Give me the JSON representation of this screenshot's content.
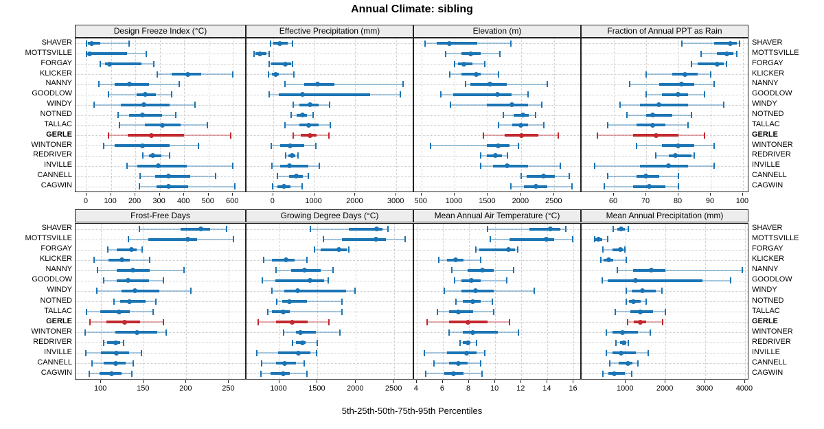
{
  "title": "Annual Climate: sibling",
  "footer": "5th-25th-50th-75th-95th Percentiles",
  "stations": [
    "SHAVER",
    "MOTTSVILLE",
    "FORGAY",
    "KLICKER",
    "NANNY",
    "GOODLOW",
    "WINDY",
    "NOTNED",
    "TALLAC",
    "GERLE",
    "WINTONER",
    "REDRIVER",
    "INVILLE",
    "CANNELL",
    "CAGWIN"
  ],
  "highlighted_station": "GERLE",
  "colors": {
    "series": "#1b74b4",
    "series_light": "rgba(27,116,180,0.38)",
    "highlight": "#c2282e",
    "highlight_light": "rgba(194,40,46,0.38)",
    "grid": "#c9c9c9",
    "header_bg": "#ededed",
    "border": "#222222"
  },
  "percentiles": [
    "5th",
    "25th",
    "50th",
    "75th",
    "95th"
  ],
  "chart_data": [
    {
      "type": "scatter",
      "subtype": "percentile-intervals",
      "title": "Design Freeze Index (°C)",
      "xlim": [
        -45,
        650
      ],
      "ticks": [
        0,
        100,
        200,
        300,
        400,
        500,
        600
      ],
      "series": {
        "SHAVER": [
          0,
          5,
          20,
          55,
          175
        ],
        "MOTTSVILLE": [
          0,
          5,
          12,
          165,
          245
        ],
        "FORGAY": [
          55,
          75,
          95,
          225,
          275
        ],
        "KLICKER": [
          290,
          350,
          415,
          470,
          600
        ],
        "NANNY": [
          50,
          115,
          175,
          255,
          380
        ],
        "GOODLOW": [
          90,
          205,
          240,
          285,
          350
        ],
        "WINDY": [
          30,
          140,
          235,
          340,
          445
        ],
        "NOTNED": [
          130,
          175,
          230,
          310,
          365
        ],
        "TALLAC": [
          135,
          240,
          310,
          385,
          495
        ],
        "GERLE": [
          90,
          170,
          265,
          400,
          590
        ],
        "WINTONER": [
          70,
          115,
          230,
          340,
          460
        ],
        "REDRIVER": [
          230,
          255,
          272,
          306,
          341
        ],
        "INVILLE": [
          165,
          207,
          293,
          411,
          600
        ],
        "CANNELL": [
          220,
          280,
          335,
          425,
          530
        ],
        "CAGWIN": [
          216,
          286,
          337,
          416,
          607
        ]
      }
    },
    {
      "type": "scatter",
      "subtype": "percentile-intervals",
      "title": "Effective Precipitation (mm)",
      "xlim": [
        -650,
        3400
      ],
      "ticks": [
        0,
        1000,
        2000,
        3000
      ],
      "series": {
        "SHAVER": [
          -60,
          0,
          160,
          360,
          470
        ],
        "MOTTSVILLE": [
          -470,
          -430,
          -320,
          -170,
          -100
        ],
        "FORGAY": [
          -100,
          -40,
          290,
          430,
          470
        ],
        "KLICKER": [
          -120,
          -30,
          60,
          140,
          510
        ],
        "NANNY": [
          290,
          750,
          1090,
          1500,
          3170
        ],
        "GOODLOW": [
          -90,
          140,
          710,
          2360,
          3100
        ],
        "WINDY": [
          490,
          640,
          890,
          1110,
          1380
        ],
        "NOTNED": [
          430,
          580,
          710,
          820,
          970
        ],
        "TALLAC": [
          290,
          640,
          860,
          1110,
          1390
        ],
        "GERLE": [
          490,
          670,
          890,
          1060,
          1360
        ],
        "WINTONER": [
          -40,
          170,
          420,
          750,
          1040
        ],
        "REDRIVER": [
          310,
          370,
          460,
          540,
          610
        ],
        "INVILLE": [
          -30,
          170,
          390,
          850,
          1130
        ],
        "CANNELL": [
          110,
          390,
          570,
          720,
          850
        ],
        "CAGWIN": [
          -20,
          110,
          270,
          420,
          710
        ]
      }
    },
    {
      "type": "scatter",
      "subtype": "percentile-intervals",
      "title": "Elevation (m)",
      "xlim": [
        390,
        2890
      ],
      "ticks": [
        500,
        1000,
        1500,
        2000,
        2500
      ],
      "series": {
        "SHAVER": [
          560,
          730,
          920,
          1340,
          1850
        ],
        "MOTTSVILLE": [
          870,
          1100,
          1240,
          1390,
          1680
        ],
        "FORGAY": [
          1000,
          1050,
          1140,
          1270,
          1450
        ],
        "KLICKER": [
          930,
          1100,
          1330,
          1390,
          1660
        ],
        "NANNY": [
          1160,
          1240,
          1530,
          1780,
          2390
        ],
        "GOODLOW": [
          790,
          980,
          1640,
          1860,
          2100
        ],
        "WINDY": [
          940,
          1480,
          1860,
          2100,
          2310
        ],
        "NOTNED": [
          1730,
          1890,
          2030,
          2120,
          2220
        ],
        "TALLAC": [
          1660,
          1870,
          2000,
          2100,
          2340
        ],
        "GERLE": [
          1430,
          1750,
          2010,
          2260,
          2560
        ],
        "WINTONER": [
          640,
          1490,
          1660,
          1830,
          1960
        ],
        "REDRIVER": [
          1390,
          1490,
          1610,
          1710,
          1800
        ],
        "INVILLE": [
          1390,
          1580,
          1790,
          2100,
          2590
        ],
        "CANNELL": [
          2000,
          2080,
          2340,
          2510,
          2720
        ],
        "CAGWIN": [
          1850,
          2040,
          2220,
          2390,
          2770
        ]
      }
    },
    {
      "type": "scatter",
      "subtype": "percentile-intervals",
      "title": "Fraction of Annual PPT as Rain",
      "xlim": [
        50,
        101.5
      ],
      "ticks": [
        60,
        70,
        80,
        90,
        100
      ],
      "series": {
        "SHAVER": [
          81,
          91,
          96,
          98,
          99
        ],
        "MOTTSVILLE": [
          87,
          92,
          95,
          97,
          98
        ],
        "FORGAY": [
          84,
          86,
          92,
          94,
          95
        ],
        "KLICKER": [
          70,
          78,
          82,
          86,
          90
        ],
        "NANNY": [
          65,
          74,
          81,
          85,
          91
        ],
        "GOODLOW": [
          70,
          75,
          80,
          83,
          88
        ],
        "WINDY": [
          62,
          68,
          74,
          83,
          94
        ],
        "NOTNED": [
          64,
          70,
          72,
          78,
          84
        ],
        "TALLAC": [
          58,
          67,
          72,
          76,
          83
        ],
        "GERLE": [
          55,
          66,
          73,
          80,
          88
        ],
        "WINTONER": [
          67,
          75,
          80,
          85,
          91
        ],
        "REDRIVER": [
          73,
          77,
          79,
          84,
          85
        ],
        "INVILLE": [
          54,
          68,
          77,
          83,
          91
        ],
        "CANNELL": [
          58,
          67,
          70,
          74,
          80
        ],
        "CAGWIN": [
          57,
          66,
          71,
          76,
          80
        ]
      }
    },
    {
      "type": "scatter",
      "subtype": "percentile-intervals",
      "title": "Frost-Free Days",
      "xlim": [
        70,
        269
      ],
      "ticks": [
        100,
        150,
        200,
        250
      ],
      "series": {
        "SHAVER": [
          145,
          193,
          217,
          228,
          247
        ],
        "MOTTSVILLE": [
          132,
          155,
          202,
          213,
          255
        ],
        "FORGAY": [
          108,
          118,
          136,
          142,
          148
        ],
        "KLICKER": [
          92,
          109,
          124,
          134,
          157
        ],
        "NANNY": [
          96,
          118,
          137,
          157,
          197
        ],
        "GOODLOW": [
          103,
          118,
          132,
          156,
          173
        ],
        "WINDY": [
          95,
          124,
          140,
          168,
          205
        ],
        "NOTNED": [
          115,
          122,
          133,
          152,
          164
        ],
        "TALLAC": [
          83,
          99,
          121,
          134,
          161
        ],
        "GERLE": [
          87,
          106,
          128,
          146,
          173
        ],
        "WINTONER": [
          81,
          117,
          142,
          166,
          176
        ],
        "REDRIVER": [
          103,
          107,
          117,
          122,
          126
        ],
        "INVILLE": [
          82,
          100,
          118,
          133,
          147
        ],
        "CANNELL": [
          89,
          103,
          117,
          129,
          138
        ],
        "CAGWIN": [
          86,
          98,
          112,
          124,
          136
        ]
      }
    },
    {
      "type": "scatter",
      "subtype": "percentile-intervals",
      "title": "Growing Degree Days (°C)",
      "xlim": [
        575,
        2740
      ],
      "ticks": [
        1000,
        1500,
        2000,
        2500
      ],
      "series": {
        "SHAVER": [
          1410,
          1910,
          2270,
          2350,
          2420
        ],
        "MOTTSVILLE": [
          1580,
          1820,
          2260,
          2390,
          2640
        ],
        "FORGAY": [
          1460,
          1540,
          1780,
          1880,
          1910
        ],
        "KLICKER": [
          800,
          910,
          1090,
          1200,
          1360
        ],
        "NANNY": [
          960,
          1160,
          1330,
          1540,
          1700
        ],
        "GOODLOW": [
          780,
          950,
          1400,
          1590,
          1640
        ],
        "WINDY": [
          910,
          1070,
          1240,
          1870,
          1990
        ],
        "NOTNED": [
          970,
          1040,
          1130,
          1360,
          1820
        ],
        "TALLAC": [
          850,
          910,
          1050,
          1140,
          1820
        ],
        "GERLE": [
          730,
          960,
          1170,
          1370,
          1650
        ],
        "WINTONER": [
          1060,
          1220,
          1280,
          1480,
          1790
        ],
        "REDRIVER": [
          1170,
          1220,
          1300,
          1340,
          1500
        ],
        "INVILLE": [
          710,
          990,
          1250,
          1410,
          1490
        ],
        "CANNELL": [
          770,
          960,
          1070,
          1220,
          1330
        ],
        "CAGWIN": [
          760,
          890,
          1050,
          1140,
          1360
        ]
      }
    },
    {
      "type": "scatter",
      "subtype": "percentile-intervals",
      "title": "Mean Annual Air Temperature (°C)",
      "xlim": [
        3.8,
        16.5
      ],
      "ticks": [
        4,
        6,
        8,
        10,
        12,
        14,
        16
      ],
      "series": {
        "SHAVER": [
          9.4,
          12.6,
          14.2,
          15.0,
          15.4
        ],
        "MOTTSVILLE": [
          9.6,
          11.1,
          13.9,
          14.5,
          15.9
        ],
        "FORGAY": [
          8.5,
          8.8,
          11.0,
          11.5,
          11.7
        ],
        "KLICKER": [
          5.7,
          6.3,
          7.0,
          7.6,
          8.9
        ],
        "NANNY": [
          6.7,
          7.9,
          9.0,
          9.9,
          11.4
        ],
        "GOODLOW": [
          6.9,
          7.4,
          8.2,
          8.9,
          10.9
        ],
        "WINDY": [
          6.1,
          7.4,
          8.5,
          9.9,
          13.0
        ],
        "NOTNED": [
          7.0,
          7.5,
          8.3,
          8.9,
          9.8
        ],
        "TALLAC": [
          5.6,
          6.5,
          7.2,
          8.3,
          9.9
        ],
        "GERLE": [
          4.8,
          6.5,
          7.9,
          9.4,
          11.1
        ],
        "WINTONER": [
          6.5,
          7.5,
          8.3,
          10.2,
          11.8
        ],
        "REDRIVER": [
          7.3,
          7.5,
          7.9,
          8.1,
          8.6
        ],
        "INVILLE": [
          4.6,
          6.3,
          7.8,
          8.6,
          9.2
        ],
        "CANNELL": [
          5.3,
          6.5,
          7.2,
          7.9,
          8.9
        ],
        "CAGWIN": [
          4.7,
          6.1,
          6.8,
          7.6,
          9.0
        ]
      }
    },
    {
      "type": "scatter",
      "subtype": "percentile-intervals",
      "title": "Mean Annual Precipitation (mm)",
      "xlim": [
        -110,
        4070
      ],
      "ticks": [
        1000,
        2000,
        3000,
        4000
      ],
      "series": {
        "SHAVER": [
          690,
          780,
          890,
          980,
          1060
        ],
        "MOTTSVILLE": [
          210,
          230,
          310,
          400,
          550
        ],
        "FORGAY": [
          420,
          660,
          860,
          940,
          980
        ],
        "KLICKER": [
          380,
          450,
          580,
          690,
          1020
        ],
        "NANNY": [
          790,
          1180,
          1640,
          2000,
          3930
        ],
        "GOODLOW": [
          400,
          550,
          1250,
          2930,
          3630
        ],
        "WINDY": [
          1010,
          1150,
          1410,
          1750,
          1910
        ],
        "NOTNED": [
          1010,
          1080,
          1200,
          1380,
          1510
        ],
        "TALLAC": [
          740,
          1120,
          1360,
          1680,
          2000
        ],
        "GERLE": [
          1050,
          1210,
          1360,
          1520,
          1930
        ],
        "WINTONER": [
          510,
          660,
          920,
          1310,
          1610
        ],
        "REDRIVER": [
          750,
          860,
          950,
          1020,
          1060
        ],
        "INVILLE": [
          510,
          660,
          890,
          1250,
          1570
        ],
        "CANNELL": [
          590,
          830,
          1060,
          1170,
          1300
        ],
        "CAGWIN": [
          420,
          560,
          710,
          980,
          1150
        ]
      }
    }
  ]
}
